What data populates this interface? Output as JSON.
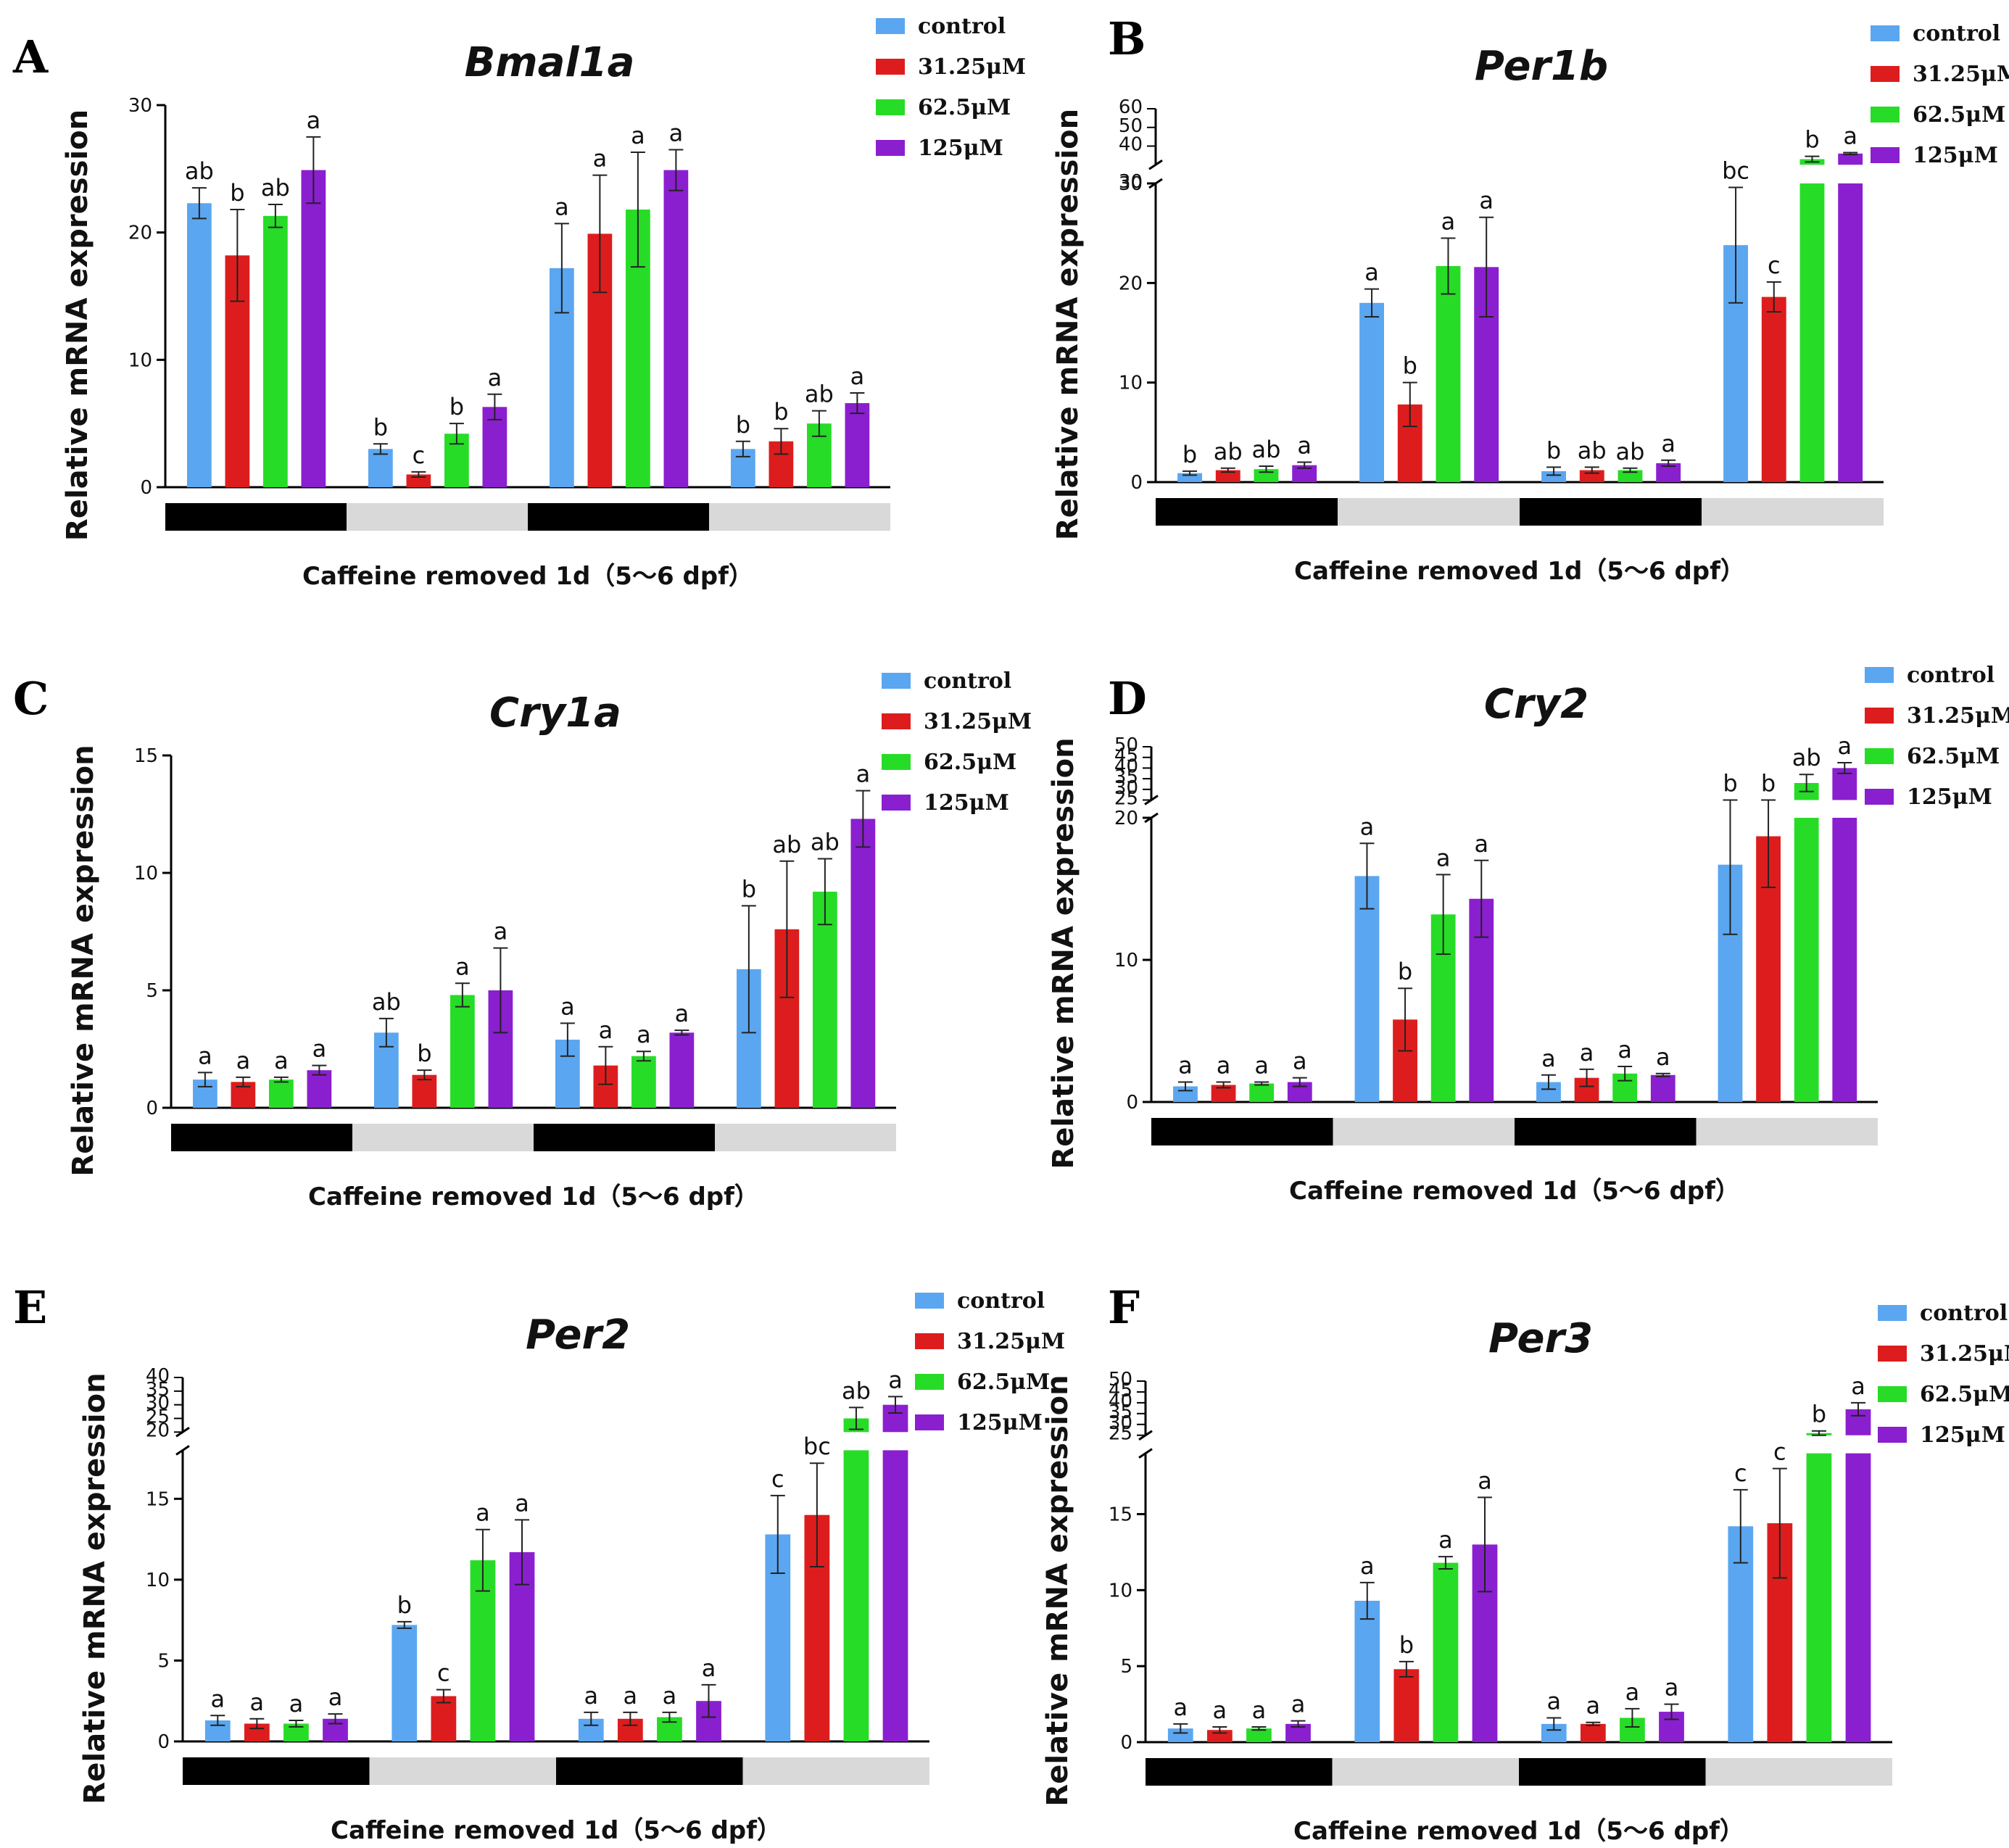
{
  "colors": {
    "control": "#5ba6f0",
    "c31": "#dd1d1d",
    "c62": "#27dc27",
    "c125": "#8a1fcf",
    "dark_bar": "#000000",
    "light_bar": "#d9d9d9"
  },
  "legend": [
    "control",
    "31.25μM",
    "62.5μM",
    "125μM"
  ],
  "xlabel": "Caffeine removed 1d（5～6 dpf）",
  "ylabel": "Relative mRNA expression",
  "chart_data": [
    {
      "type": "bar",
      "panel": "A",
      "title": "Bmal1a",
      "ylabel": "Relative mRNA expression",
      "xlabel": "Caffeine removed 1d（5～6 dpf）",
      "ylim": [
        0,
        30
      ],
      "yticks": [
        "0",
        "10",
        "20",
        "30"
      ],
      "break": null,
      "categories": [
        "dark 1",
        "light 1",
        "dark 2",
        "light 2"
      ],
      "series": [
        {
          "name": "control",
          "values": [
            22.3,
            3.0,
            17.2,
            3.0
          ],
          "errors": [
            1.2,
            0.4,
            3.5,
            0.6
          ]
        },
        {
          "name": "31.25μM",
          "values": [
            18.2,
            1.0,
            19.9,
            3.6
          ],
          "errors": [
            3.6,
            0.2,
            4.6,
            1.0
          ]
        },
        {
          "name": "62.5μM",
          "values": [
            21.3,
            4.2,
            21.8,
            5.0
          ],
          "errors": [
            0.9,
            0.8,
            4.5,
            1.0
          ]
        },
        {
          "name": "125μM",
          "values": [
            24.9,
            6.3,
            24.9,
            6.6
          ],
          "errors": [
            2.6,
            1.0,
            1.6,
            0.8
          ]
        }
      ],
      "labels": [
        [
          "ab",
          "b",
          "a",
          "b"
        ],
        [
          "b",
          "c",
          "a",
          "b"
        ],
        [
          "ab",
          "b",
          "a",
          "ab"
        ],
        [
          "a",
          "a",
          "a",
          "a"
        ]
      ]
    },
    {
      "type": "bar",
      "panel": "B",
      "title": "Per1b",
      "ylabel": "Relative mRNA expression",
      "xlabel": "Caffeine removed 1d（5～6 dpf）",
      "ylim": [
        0,
        30
      ],
      "yticks": [
        "0",
        "10",
        "20",
        "30"
      ],
      "break": {
        "upper_min": 30,
        "upper_max": 60,
        "upper_ticks": [
          "30",
          "40",
          "50",
          "60"
        ]
      },
      "categories": [
        "dark 1",
        "light 1",
        "dark 2",
        "light 2"
      ],
      "series": [
        {
          "name": "control",
          "values": [
            0.9,
            18.0,
            1.1,
            23.8
          ],
          "errors": [
            0.2,
            1.4,
            0.4,
            5.8
          ]
        },
        {
          "name": "31.25μM",
          "values": [
            1.2,
            7.8,
            1.2,
            18.6
          ],
          "errors": [
            0.2,
            2.2,
            0.3,
            1.5
          ]
        },
        {
          "name": "62.5μM",
          "values": [
            1.3,
            21.7,
            1.2,
            33.0
          ],
          "errors": [
            0.3,
            2.8,
            0.2,
            1.5
          ]
        },
        {
          "name": "125μM",
          "values": [
            1.7,
            21.6,
            1.9,
            36.0
          ],
          "errors": [
            0.3,
            5.0,
            0.3,
            0.5
          ]
        }
      ],
      "labels": [
        [
          "b",
          "a",
          "b",
          "bc"
        ],
        [
          "ab",
          "b",
          "ab",
          "c"
        ],
        [
          "ab",
          "a",
          "ab",
          "b"
        ],
        [
          "a",
          "a",
          "a",
          "a"
        ]
      ]
    },
    {
      "type": "bar",
      "panel": "C",
      "title": "Cry1a",
      "ylabel": "Relative mRNA expression",
      "xlabel": "Caffeine removed 1d（5～6 dpf）",
      "ylim": [
        0,
        15
      ],
      "yticks": [
        "0",
        "5",
        "10",
        "15"
      ],
      "break": null,
      "categories": [
        "dark 1",
        "light 1",
        "dark 2",
        "light 2"
      ],
      "series": [
        {
          "name": "control",
          "values": [
            1.2,
            3.2,
            2.9,
            5.9
          ],
          "errors": [
            0.3,
            0.6,
            0.7,
            2.7
          ]
        },
        {
          "name": "31.25μM",
          "values": [
            1.1,
            1.4,
            1.8,
            7.6
          ],
          "errors": [
            0.2,
            0.2,
            0.8,
            2.9
          ]
        },
        {
          "name": "62.5μM",
          "values": [
            1.2,
            4.8,
            2.2,
            9.2
          ],
          "errors": [
            0.1,
            0.5,
            0.2,
            1.4
          ]
        },
        {
          "name": "125μM",
          "values": [
            1.6,
            5.0,
            3.2,
            12.3
          ],
          "errors": [
            0.2,
            1.8,
            0.1,
            1.2
          ]
        }
      ],
      "labels": [
        [
          "a",
          "ab",
          "a",
          "b"
        ],
        [
          "a",
          "b",
          "a",
          "ab"
        ],
        [
          "a",
          "a",
          "a",
          "ab"
        ],
        [
          "a",
          "a",
          "a",
          "a"
        ]
      ]
    },
    {
      "type": "bar",
      "panel": "D",
      "title": "Cry2",
      "ylabel": "Relative mRNA expression",
      "xlabel": "Caffeine removed 1d（5～6 dpf）",
      "ylim": [
        0,
        20
      ],
      "yticks": [
        "0",
        "10",
        "20"
      ],
      "break": {
        "upper_min": 25,
        "upper_max": 50,
        "upper_ticks": [
          "25",
          "30",
          "35",
          "40",
          "45",
          "50"
        ]
      },
      "categories": [
        "dark 1",
        "light 1",
        "dark 2",
        "light 2"
      ],
      "series": [
        {
          "name": "control",
          "values": [
            1.1,
            15.9,
            1.4,
            16.7
          ],
          "errors": [
            0.3,
            2.3,
            0.5,
            4.9
          ]
        },
        {
          "name": "31.25μM",
          "values": [
            1.2,
            5.8,
            1.7,
            18.7
          ],
          "errors": [
            0.2,
            2.2,
            0.6,
            3.6
          ]
        },
        {
          "name": "62.5μM",
          "values": [
            1.3,
            13.2,
            2.0,
            33.0
          ],
          "errors": [
            0.1,
            2.8,
            0.5,
            4.0
          ]
        },
        {
          "name": "125μM",
          "values": [
            1.4,
            14.3,
            1.9,
            40.0
          ],
          "errors": [
            0.3,
            2.7,
            0.1,
            2.5
          ]
        }
      ],
      "labels": [
        [
          "a",
          "a",
          "a",
          "b"
        ],
        [
          "a",
          "b",
          "a",
          "b"
        ],
        [
          "a",
          "a",
          "a",
          "ab"
        ],
        [
          "a",
          "a",
          "a",
          "a"
        ]
      ]
    },
    {
      "type": "bar",
      "panel": "E",
      "title": "Per2",
      "ylabel": "Relative mRNA expression",
      "xlabel": "Caffeine removed 1d（5～6 dpf）",
      "ylim": [
        0,
        18
      ],
      "yticks": [
        "0",
        "5",
        "10",
        "15"
      ],
      "break": {
        "upper_min": 20,
        "upper_max": 40,
        "upper_ticks": [
          "20",
          "25",
          "30",
          "35",
          "40"
        ]
      },
      "categories": [
        "dark 1",
        "light 1",
        "dark 2",
        "light 2"
      ],
      "series": [
        {
          "name": "control",
          "values": [
            1.3,
            7.2,
            1.4,
            12.8
          ],
          "errors": [
            0.3,
            0.2,
            0.4,
            2.4
          ]
        },
        {
          "name": "31.25μM",
          "values": [
            1.1,
            2.8,
            1.4,
            14.0
          ],
          "errors": [
            0.3,
            0.4,
            0.4,
            3.2
          ]
        },
        {
          "name": "62.5μM",
          "values": [
            1.1,
            11.2,
            1.5,
            25.0
          ],
          "errors": [
            0.2,
            1.9,
            0.3,
            4.0
          ]
        },
        {
          "name": "125μM",
          "values": [
            1.4,
            11.7,
            2.5,
            30.0
          ],
          "errors": [
            0.3,
            2.0,
            1.0,
            3.0
          ]
        }
      ],
      "labels": [
        [
          "a",
          "b",
          "a",
          "c"
        ],
        [
          "a",
          "c",
          "a",
          "bc"
        ],
        [
          "a",
          "a",
          "a",
          "ab"
        ],
        [
          "a",
          "a",
          "a",
          "a"
        ]
      ]
    },
    {
      "type": "bar",
      "panel": "F",
      "title": "Per3",
      "ylabel": "Relative mRNA expression",
      "xlabel": "Caffeine removed 1d（5～6 dpf）",
      "ylim": [
        0,
        19
      ],
      "yticks": [
        "0",
        "5",
        "10",
        "15"
      ],
      "break": {
        "upper_min": 25,
        "upper_max": 50,
        "upper_ticks": [
          "25",
          "30",
          "35",
          "40",
          "45",
          "50"
        ]
      },
      "categories": [
        "dark 1",
        "light 1",
        "dark 2",
        "light 2"
      ],
      "series": [
        {
          "name": "control",
          "values": [
            0.9,
            9.3,
            1.2,
            14.2
          ],
          "errors": [
            0.3,
            1.2,
            0.4,
            2.4
          ]
        },
        {
          "name": "31.25μM",
          "values": [
            0.8,
            4.8,
            1.2,
            14.4
          ],
          "errors": [
            0.2,
            0.5,
            0.1,
            3.6
          ]
        },
        {
          "name": "62.5μM",
          "values": [
            0.9,
            11.8,
            1.6,
            26.0
          ],
          "errors": [
            0.1,
            0.4,
            0.6,
            1.0
          ]
        },
        {
          "name": "125μM",
          "values": [
            1.2,
            13.0,
            2.0,
            37.0
          ],
          "errors": [
            0.2,
            3.1,
            0.5,
            3.0
          ]
        }
      ],
      "labels": [
        [
          "a",
          "a",
          "a",
          "c"
        ],
        [
          "a",
          "b",
          "a",
          "c"
        ],
        [
          "a",
          "a",
          "a",
          "b"
        ],
        [
          "a",
          "a",
          "a",
          "a"
        ]
      ]
    }
  ]
}
